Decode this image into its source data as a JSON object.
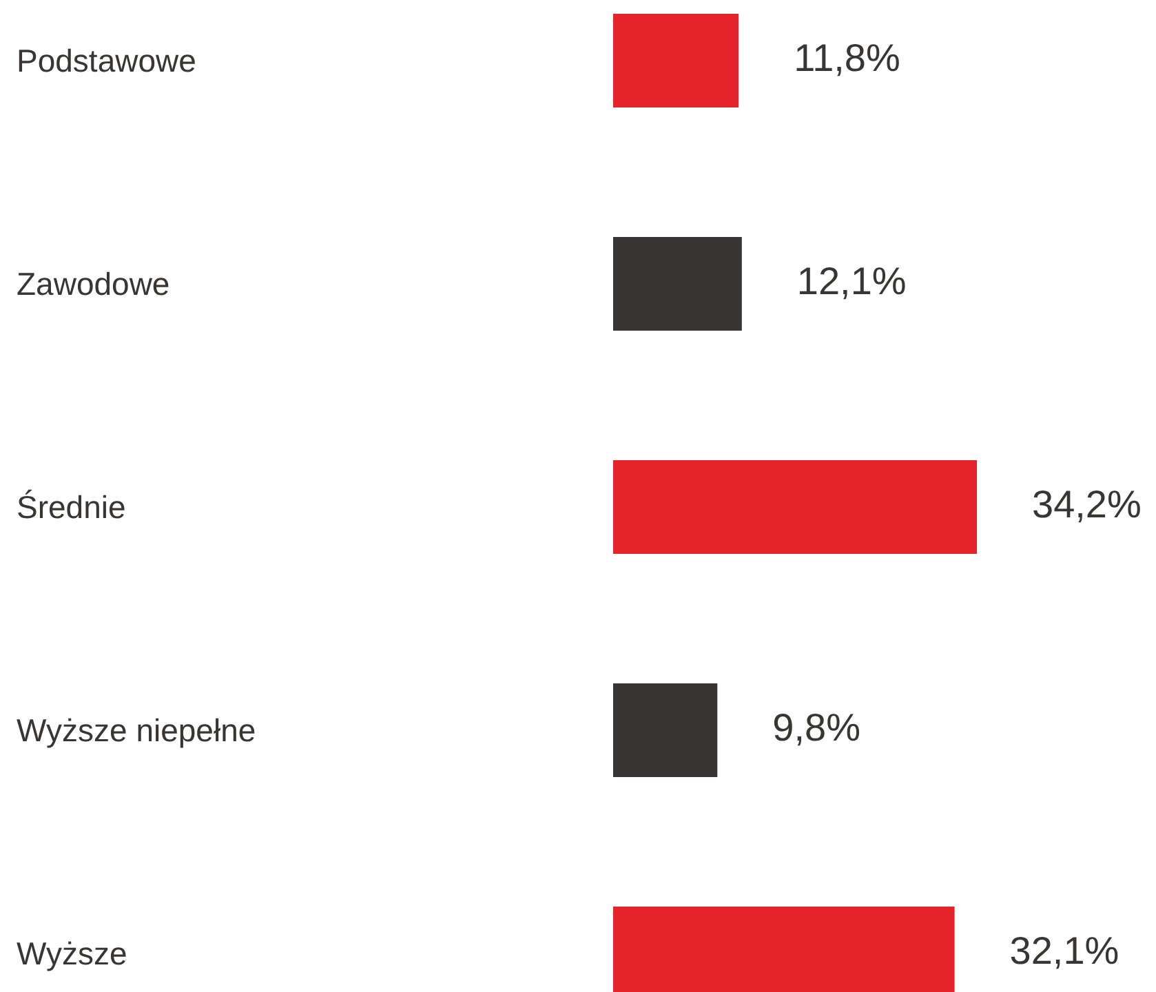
{
  "chart_data": {
    "type": "bar",
    "orientation": "horizontal",
    "categories": [
      "Podstawowe",
      "Zawodowe",
      "Średnie",
      "Wyższe niepełne",
      "Wyższe"
    ],
    "values": [
      11.8,
      12.1,
      34.2,
      9.8,
      32.1
    ],
    "colors": [
      "#e4232a",
      "#3a3535",
      "#e4232a",
      "#3a3535",
      "#e4232a"
    ],
    "value_labels": [
      "11,8%",
      "12,1%",
      "34,2%",
      "9,8%",
      "32,1%"
    ]
  }
}
